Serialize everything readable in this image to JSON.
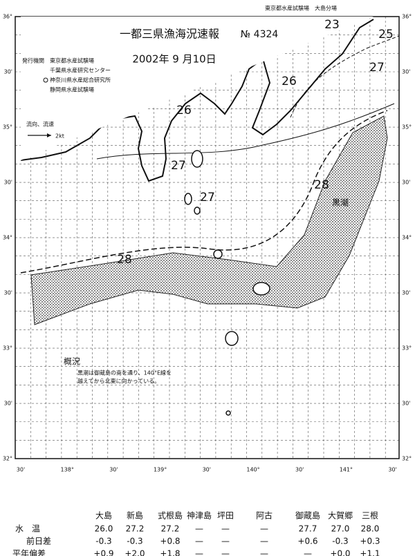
{
  "header": {
    "agency_top": "東京都水産試験場　大島分場",
    "title": "一都三県漁海況速報",
    "number": "№ 4324",
    "date": "2002年 9 月10日",
    "issuers": [
      "発行機関　東京都水産試験場",
      "千葉県水産研究センター",
      "神奈川県水産総合研究所",
      "静岡県水産試験場"
    ]
  },
  "legend": {
    "label": "流向、流速",
    "speed": "2kt"
  },
  "map": {
    "lat_labels": [
      "36°",
      "30'",
      "35°",
      "30'",
      "34°",
      "30'",
      "33°",
      "30'",
      "32°"
    ],
    "lon_labels": [
      "30'",
      "138°",
      "30'",
      "139°",
      "30'",
      "140°",
      "30'",
      "141°",
      "30'"
    ],
    "isotherms": [
      "23",
      "25",
      "26",
      "27",
      "26",
      "27",
      "27",
      "28",
      "28"
    ],
    "current_name": "黒潮"
  },
  "summary": {
    "heading": "概況",
    "text": [
      "黒潮は御蔵島の南を通り、140°E線を",
      "越えてから北東に向かっている。"
    ]
  },
  "table": {
    "stations": [
      "大島",
      "新島",
      "式根島",
      "神津島",
      "坪田",
      "阿古",
      "御蔵島",
      "大賀郷",
      "三根"
    ],
    "rows": [
      {
        "label": "水　温",
        "values": [
          "26.0",
          "27.2",
          "27.2",
          "—",
          "—",
          "—",
          "27.7",
          "27.0",
          "28.0"
        ]
      },
      {
        "label": "前日差",
        "values": [
          "-0.3",
          "-0.3",
          "+0.8",
          "—",
          "—",
          "—",
          "+0.6",
          "-0.3",
          "+0.3"
        ]
      },
      {
        "label": "平年偏差",
        "values": [
          "+0.9",
          "+2.0",
          "+1.8",
          "—",
          "—",
          "—",
          "—",
          "+0.0",
          "+1.1"
        ]
      }
    ]
  }
}
